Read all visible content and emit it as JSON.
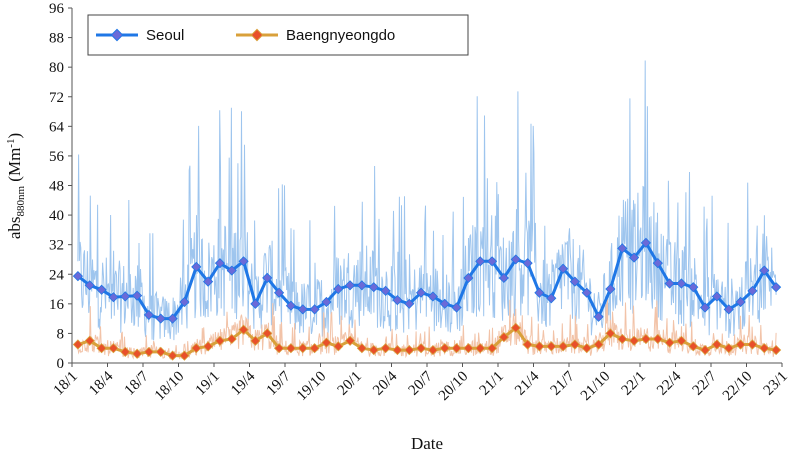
{
  "chart_data": {
    "type": "line",
    "xlabel": "Date",
    "ylabel": {
      "main": "abs",
      "sub": "880nm",
      "unit_open": " (Mm",
      "unit_sup": "-1",
      "unit_close": ")"
    },
    "ylim": [
      0,
      96
    ],
    "yticks": [
      0,
      8,
      16,
      24,
      32,
      40,
      48,
      56,
      64,
      72,
      80,
      88,
      96
    ],
    "x_range_months": [
      0,
      60
    ],
    "xticks": [
      {
        "label": "18/1",
        "m": 0
      },
      {
        "label": "18/4",
        "m": 3
      },
      {
        "label": "18/7",
        "m": 6
      },
      {
        "label": "18/10",
        "m": 9
      },
      {
        "label": "19/1",
        "m": 12
      },
      {
        "label": "19/4",
        "m": 15
      },
      {
        "label": "19/7",
        "m": 18
      },
      {
        "label": "19/10",
        "m": 21
      },
      {
        "label": "20/1",
        "m": 24
      },
      {
        "label": "20/4",
        "m": 27
      },
      {
        "label": "20/7",
        "m": 30
      },
      {
        "label": "20/10",
        "m": 33
      },
      {
        "label": "21/1",
        "m": 36
      },
      {
        "label": "21/4",
        "m": 39
      },
      {
        "label": "21/7",
        "m": 42
      },
      {
        "label": "21/10",
        "m": 45
      },
      {
        "label": "22/1",
        "m": 48
      },
      {
        "label": "22/4",
        "m": 51
      },
      {
        "label": "22/7",
        "m": 54
      },
      {
        "label": "22/10",
        "m": 57
      },
      {
        "label": "23/1",
        "m": 60
      }
    ],
    "grid": false,
    "legend": "top-left",
    "series": [
      {
        "name": "Seoul",
        "color": "#1f77e6",
        "marker_fill": "#6a6ad8",
        "daily_color": "#9ec5ee",
        "values": [
          23.5,
          21,
          19.8,
          17.8,
          18,
          18.2,
          13,
          12,
          12,
          16.5,
          26,
          22,
          27,
          25,
          27.5,
          16,
          23,
          19,
          15.5,
          14.5,
          14.5,
          16.5,
          20,
          21,
          21,
          20.5,
          19.5,
          17,
          16,
          19,
          18,
          16,
          15,
          23,
          27.5,
          27.5,
          23,
          28,
          27,
          19,
          17.5,
          25.5,
          22,
          19,
          12.5,
          20,
          31,
          28.5,
          32.5,
          27,
          21.5,
          21.5,
          20.5,
          15,
          18,
          14.5,
          16.5,
          19.5,
          25,
          20.5
        ]
      },
      {
        "name": "Baengnyeongdo",
        "color": "#d9a03a",
        "marker_fill": "#e8502a",
        "daily_color": "#f2c3a8",
        "values": [
          5,
          6,
          4,
          4,
          3,
          2.5,
          3,
          3,
          2,
          2,
          4,
          4.5,
          6,
          6.5,
          9,
          6,
          8,
          4,
          4,
          4,
          4,
          5.5,
          4.5,
          6,
          4,
          3.5,
          4,
          3.5,
          3.5,
          4,
          3.5,
          4,
          4,
          4,
          4,
          4,
          7,
          9.5,
          5,
          4.5,
          4.5,
          4.5,
          5,
          4,
          5,
          8,
          6.5,
          6,
          6.5,
          6.5,
          5.5,
          6,
          4.5,
          3.5,
          5,
          4,
          5,
          5,
          4,
          3.5
        ]
      }
    ]
  }
}
